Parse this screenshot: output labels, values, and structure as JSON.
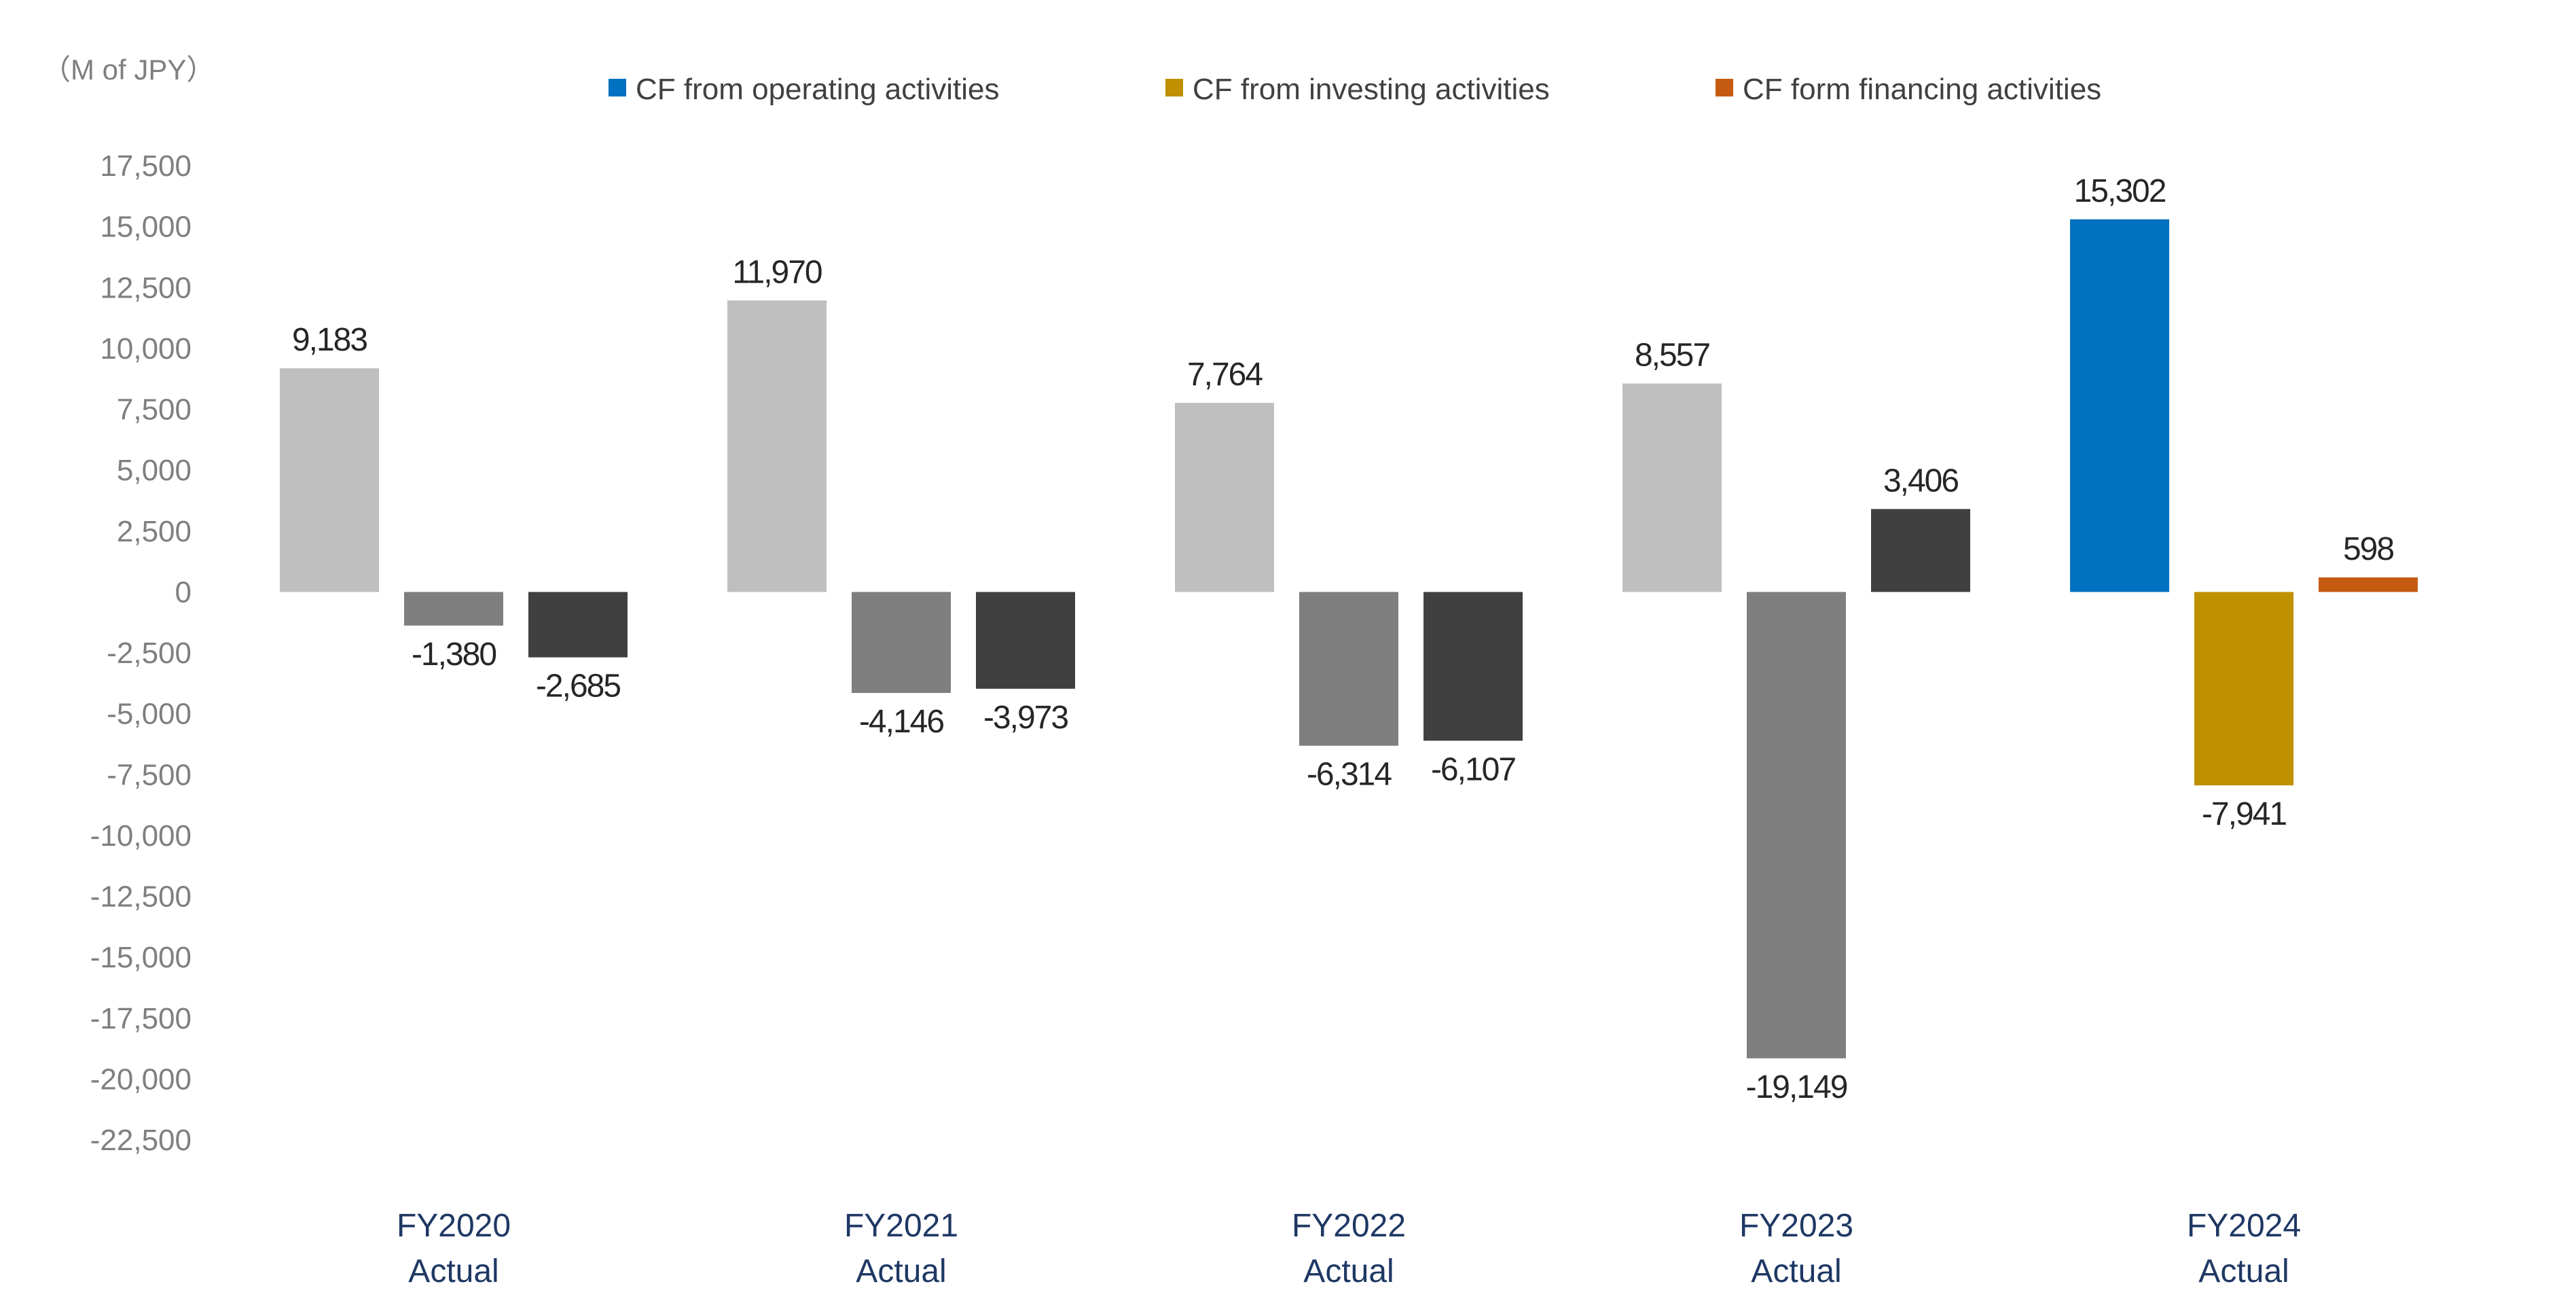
{
  "chart_data": {
    "type": "bar",
    "unit_label": "（M of JPY）",
    "categories": [
      [
        "FY2020",
        "Actual"
      ],
      [
        "FY2021",
        "Actual"
      ],
      [
        "FY2022",
        "Actual"
      ],
      [
        "FY2023",
        "Actual"
      ],
      [
        "FY2024",
        "Actual"
      ]
    ],
    "series": [
      {
        "name": "CF from operating activities",
        "values": [
          9183,
          11970,
          7764,
          8557,
          15302
        ],
        "labels": [
          "9,183",
          "11,970",
          "7,764",
          "8,557",
          "15,302"
        ],
        "color": "#0070c0",
        "past_color": "#bfbfbf"
      },
      {
        "name": "CF from investing activities",
        "values": [
          -1380,
          -4146,
          -6314,
          -19149,
          -7941
        ],
        "labels": [
          "-1,380",
          "-4,146",
          "-6,314",
          "-19,149",
          "-7,941"
        ],
        "color": "#bf9000",
        "past_color": "#7f7f7f"
      },
      {
        "name": "CF form financing activities",
        "values": [
          -2685,
          -3973,
          -6107,
          3406,
          598
        ],
        "labels": [
          "-2,685",
          "-3,973",
          "-6,107",
          "3,406",
          "598"
        ],
        "color": "#c55a11",
        "past_color": "#404040"
      }
    ],
    "ylim": [
      -22500,
      17500
    ],
    "yticks": [
      17500,
      15000,
      12500,
      10000,
      7500,
      5000,
      2500,
      0,
      -2500,
      -5000,
      -7500,
      -10000,
      -12500,
      -15000,
      -17500,
      -20000,
      -22500
    ],
    "ytick_labels": [
      "17,500",
      "15,000",
      "12,500",
      "10,000",
      "7,500",
      "5,000",
      "2,500",
      "0",
      "-2,500",
      "-5,000",
      "-7,500",
      "-10,000",
      "-12,500",
      "-15,000",
      "-17,500",
      "-20,000",
      "-22,500"
    ],
    "highlighted_category": "FY2024",
    "grid": false,
    "legend": "top"
  }
}
